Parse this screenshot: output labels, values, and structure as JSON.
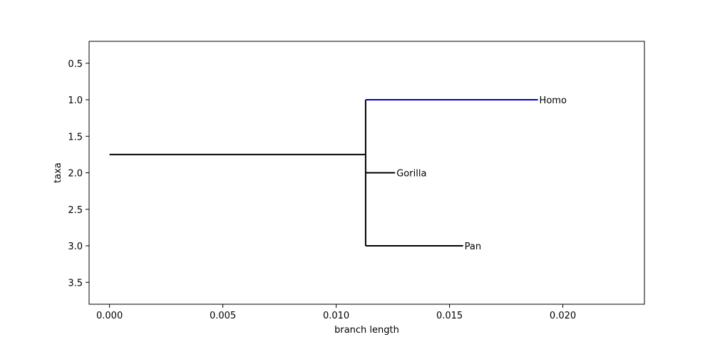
{
  "chart_data": {
    "type": "tree",
    "xlabel": "branch length",
    "ylabel": "taxa",
    "xlim": [
      -0.0009,
      0.0236
    ],
    "ylim": [
      3.8,
      0.2
    ],
    "xticks": [
      0.0,
      0.005,
      0.01,
      0.015,
      0.02
    ],
    "xtick_labels": [
      "0.000",
      "0.005",
      "0.010",
      "0.015",
      "0.020"
    ],
    "yticks": [
      0.5,
      1.0,
      1.5,
      2.0,
      2.5,
      3.0,
      3.5
    ],
    "ytick_labels": [
      "0.5",
      "1.0",
      "1.5",
      "2.0",
      "2.5",
      "3.0",
      "3.5"
    ],
    "grid": false,
    "tree": {
      "root": {
        "x": 0.0,
        "y": 1.75
      },
      "internal_node": {
        "x": 0.0113,
        "y_span": [
          1.0,
          3.0
        ]
      },
      "branches": [
        {
          "name": "root-branch",
          "x0": 0.0,
          "x1": 0.0113,
          "y": 1.75,
          "color": "#000000"
        },
        {
          "name": "homo-branch",
          "x0": 0.0113,
          "x1": 0.0189,
          "y": 1.0,
          "color": "#0000cc"
        },
        {
          "name": "gorilla-branch",
          "x0": 0.0113,
          "x1": 0.0126,
          "y": 2.0,
          "color": "#000000"
        },
        {
          "name": "pan-branch",
          "x0": 0.0113,
          "x1": 0.0156,
          "y": 3.0,
          "color": "#000000"
        }
      ],
      "taxa": [
        {
          "label": " Homo",
          "x": 0.0189,
          "y": 1.0
        },
        {
          "label": " Gorilla",
          "x": 0.0126,
          "y": 2.0
        },
        {
          "label": " Pan",
          "x": 0.0156,
          "y": 3.0
        }
      ]
    }
  }
}
